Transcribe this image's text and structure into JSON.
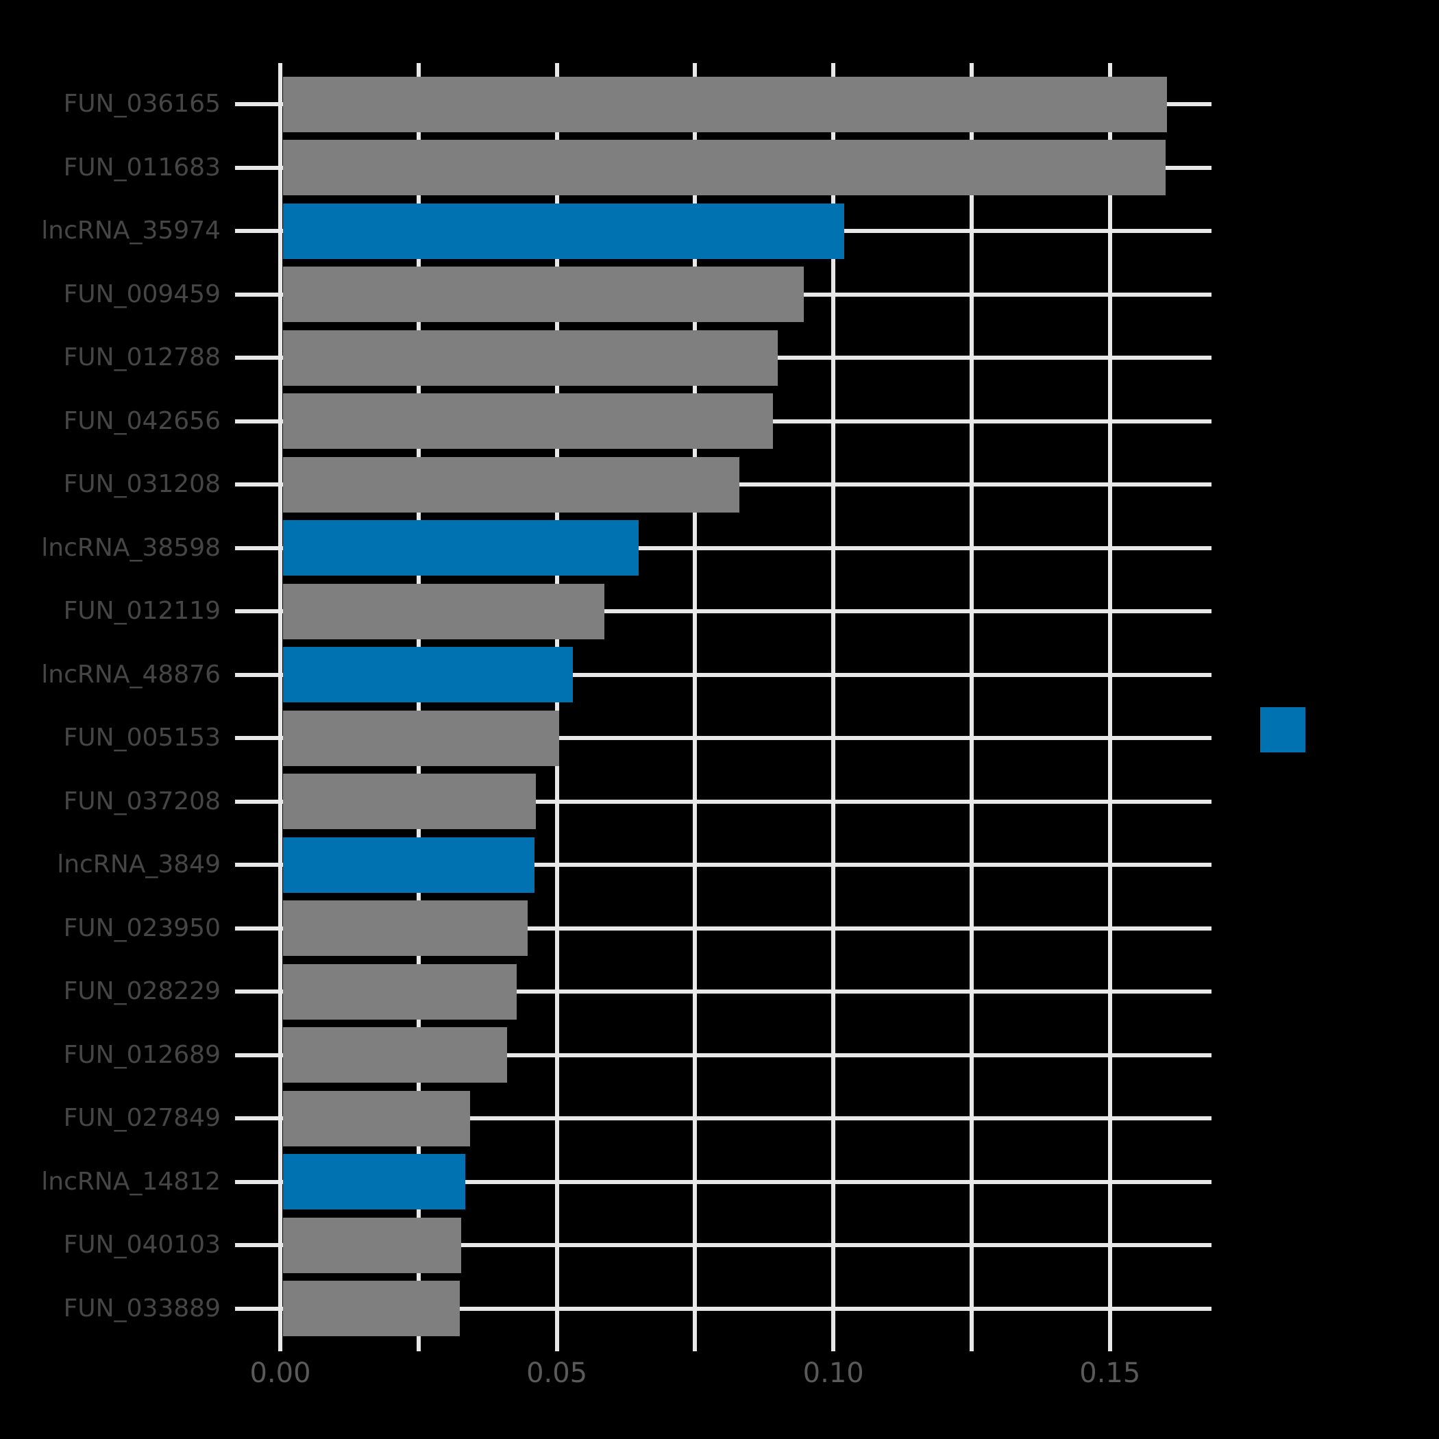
{
  "chart_data": {
    "type": "bar",
    "orientation": "horizontal",
    "title": "",
    "xlabel": "",
    "ylabel": "",
    "xlim": [
      0,
      0.1684
    ],
    "x_major_tick_labels": [
      "0.00",
      "0.05",
      "0.10",
      "0.15"
    ],
    "x_major_tick_values": [
      0.0,
      0.05,
      0.1,
      0.15
    ],
    "x_minor_tick_step": 0.025,
    "x_gridline_values": [
      0.0,
      0.025,
      0.05,
      0.075,
      0.1,
      0.125,
      0.15
    ],
    "grid": true,
    "legend_position": "right-center",
    "categories": [
      "FUN_036165",
      "FUN_011683",
      "lncRNA_35974",
      "FUN_009459",
      "FUN_012788",
      "FUN_042656",
      "FUN_031208",
      "lncRNA_38598",
      "FUN_012119",
      "lncRNA_48876",
      "FUN_005153",
      "FUN_037208",
      "lncRNA_3849",
      "FUN_023950",
      "FUN_028229",
      "FUN_012689",
      "FUN_027849",
      "lncRNA_14812",
      "FUN_040103",
      "FUN_033889"
    ],
    "values": [
      0.1603,
      0.1601,
      0.1019,
      0.0946,
      0.09,
      0.0891,
      0.083,
      0.0648,
      0.0586,
      0.0529,
      0.0504,
      0.0462,
      0.046,
      0.0447,
      0.0428,
      0.041,
      0.0343,
      0.0334,
      0.0327,
      0.0324
    ],
    "groups": [
      "FUN",
      "FUN",
      "lncRNA",
      "FUN",
      "FUN",
      "FUN",
      "FUN",
      "lncRNA",
      "FUN",
      "lncRNA",
      "FUN",
      "FUN",
      "lncRNA",
      "FUN",
      "FUN",
      "FUN",
      "FUN",
      "lncRNA",
      "FUN",
      "FUN"
    ],
    "group_colors": {
      "FUN": "#7F7F7F",
      "lncRNA": "#0072B2"
    },
    "legend": {
      "entries": [
        {
          "label": "",
          "color": "#0072B2"
        }
      ]
    }
  },
  "style": {
    "background_color": "#000000",
    "grid_color": "#E8E8E8",
    "y_axis_text_color": "#464646",
    "x_axis_text_color": "#5A5A5A"
  }
}
